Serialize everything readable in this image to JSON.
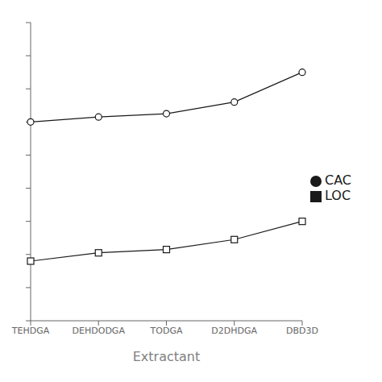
{
  "chart_data": {
    "type": "line",
    "xlabel": "Extractant",
    "categories": [
      "TEHDGA",
      "DEHDODGA",
      "TODGA",
      "D2DHDGA",
      "DBD3D"
    ],
    "series": [
      {
        "name": "CAC",
        "color": "#1a1a1a",
        "marker": "circle",
        "values": [
          0.6,
          0.615,
          0.625,
          0.66,
          0.75
        ]
      },
      {
        "name": "LOC",
        "color": "#1a1a1a",
        "marker": "square",
        "values": [
          0.18,
          0.205,
          0.215,
          0.245,
          0.3
        ]
      }
    ],
    "ylim": [
      0.0,
      0.9
    ],
    "yticks": [
      0.0,
      0.1,
      0.2,
      0.3,
      0.4,
      0.5,
      0.6,
      0.7,
      0.8,
      0.9
    ],
    "tick_labels": "x",
    "grid": false,
    "legend": "right"
  }
}
